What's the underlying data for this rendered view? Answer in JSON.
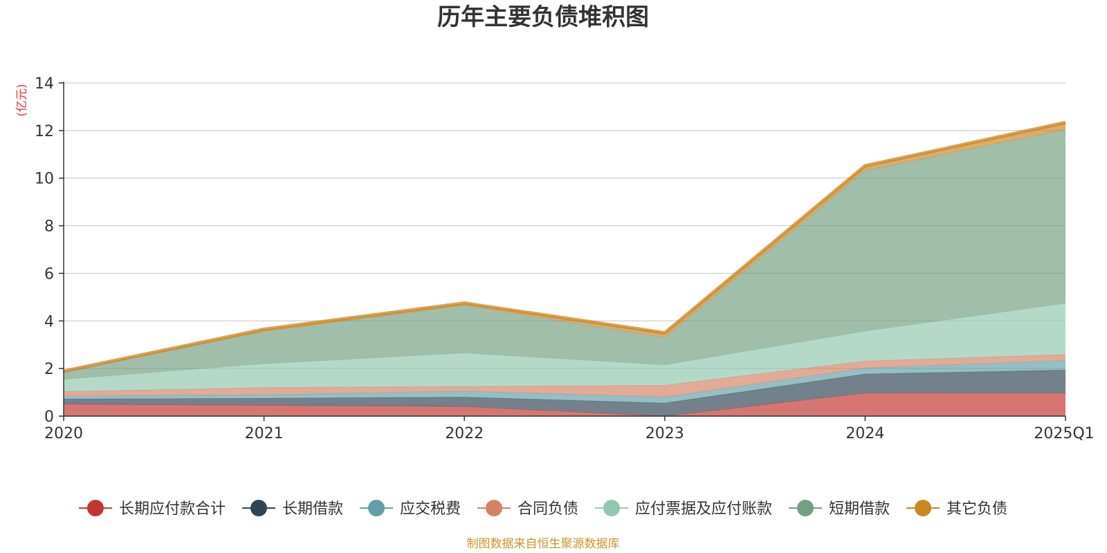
{
  "chart_data": {
    "type": "area",
    "stacked": true,
    "title": "历年主要负债堆积图",
    "ylabel": "(亿元)",
    "xlabel": "",
    "categories": [
      "2020",
      "2021",
      "2022",
      "2023",
      "2024",
      "2025Q1"
    ],
    "ylim": [
      0,
      14
    ],
    "yticks": [
      0,
      2,
      4,
      6,
      8,
      10,
      12,
      14
    ],
    "grid": true,
    "legend_position": "bottom",
    "series": [
      {
        "name": "长期应付款合计",
        "color": "#c23531",
        "values": [
          0.5,
          0.45,
          0.4,
          0.0,
          0.97,
          0.97
        ]
      },
      {
        "name": "长期借款",
        "color": "#2f4554",
        "values": [
          0.22,
          0.3,
          0.4,
          0.55,
          0.8,
          0.97
        ]
      },
      {
        "name": "应交税费",
        "color": "#61a0a8",
        "values": [
          0.12,
          0.15,
          0.25,
          0.25,
          0.25,
          0.4
        ]
      },
      {
        "name": "合同负债",
        "color": "#d48265",
        "values": [
          0.2,
          0.3,
          0.2,
          0.5,
          0.3,
          0.25
        ]
      },
      {
        "name": "应付票据及应付账款",
        "color": "#91c7ae",
        "values": [
          0.5,
          1.0,
          1.4,
          0.85,
          1.25,
          2.15
        ]
      },
      {
        "name": "短期借款",
        "color": "#749f83",
        "values": [
          0.3,
          1.35,
          2.0,
          1.15,
          6.75,
          7.3
        ]
      },
      {
        "name": "其它负债",
        "color": "#ca8622",
        "values": [
          0.05,
          0.1,
          0.1,
          0.2,
          0.2,
          0.3
        ]
      }
    ]
  },
  "footer": {
    "source": "制图数据来自恒生聚源数据库"
  }
}
